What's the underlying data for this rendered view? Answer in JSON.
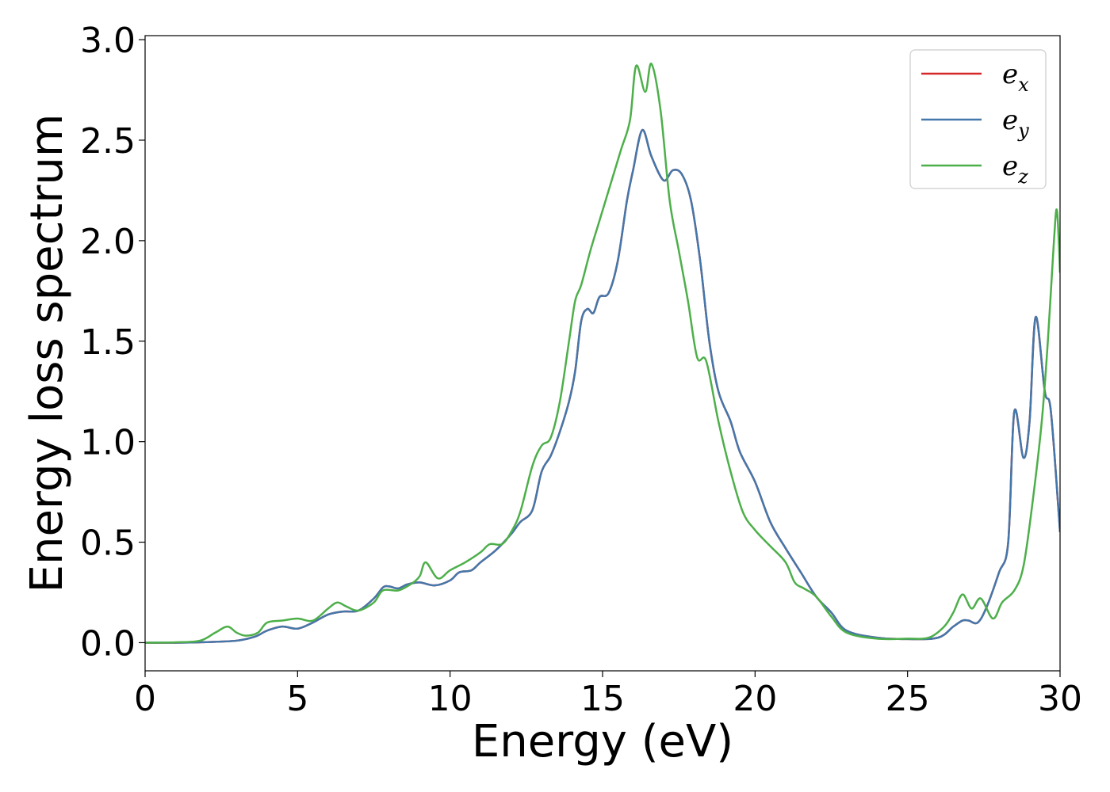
{
  "chart_data": {
    "type": "line",
    "title": "",
    "xlabel": "Energy (eV)",
    "ylabel": "Energy loss spectrum",
    "xlim": [
      0,
      30
    ],
    "ylim": [
      -0.14,
      3.02
    ],
    "xticks": [
      0,
      5,
      10,
      15,
      20,
      25,
      30
    ],
    "yticks": [
      0.0,
      0.5,
      1.0,
      1.5,
      2.0,
      2.5,
      3.0
    ],
    "xtick_labels": [
      "0",
      "5",
      "10",
      "15",
      "20",
      "25",
      "30"
    ],
    "ytick_labels": [
      "0.0",
      "0.5",
      "1.0",
      "1.5",
      "2.0",
      "2.5",
      "3.0"
    ],
    "grid": false,
    "legend_position": "top-right",
    "series": [
      {
        "name": "e",
        "subscript": "x",
        "color": "#d62728",
        "points": [
          [
            0,
            0.0
          ],
          [
            1,
            0.0
          ],
          [
            2,
            0.003
          ],
          [
            3,
            0.01
          ],
          [
            3.6,
            0.03
          ],
          [
            4,
            0.06
          ],
          [
            4.5,
            0.08
          ],
          [
            5,
            0.07
          ],
          [
            5.5,
            0.1
          ],
          [
            6,
            0.14
          ],
          [
            6.5,
            0.155
          ],
          [
            7,
            0.16
          ],
          [
            7.5,
            0.22
          ],
          [
            7.8,
            0.275
          ],
          [
            8,
            0.28
          ],
          [
            8.3,
            0.27
          ],
          [
            8.6,
            0.29
          ],
          [
            9,
            0.3
          ],
          [
            9.5,
            0.285
          ],
          [
            10,
            0.31
          ],
          [
            10.3,
            0.35
          ],
          [
            10.7,
            0.36
          ],
          [
            11,
            0.4
          ],
          [
            11.5,
            0.46
          ],
          [
            12,
            0.54
          ],
          [
            12.3,
            0.6
          ],
          [
            12.7,
            0.66
          ],
          [
            13,
            0.85
          ],
          [
            13.3,
            0.93
          ],
          [
            13.6,
            1.05
          ],
          [
            13.9,
            1.2
          ],
          [
            14.1,
            1.35
          ],
          [
            14.3,
            1.6
          ],
          [
            14.5,
            1.66
          ],
          [
            14.7,
            1.64
          ],
          [
            14.9,
            1.72
          ],
          [
            15.2,
            1.74
          ],
          [
            15.5,
            1.9
          ],
          [
            15.8,
            2.2
          ],
          [
            16,
            2.35
          ],
          [
            16.3,
            2.55
          ],
          [
            16.6,
            2.42
          ],
          [
            17,
            2.3
          ],
          [
            17.3,
            2.35
          ],
          [
            17.6,
            2.33
          ],
          [
            17.9,
            2.2
          ],
          [
            18.2,
            1.9
          ],
          [
            18.5,
            1.5
          ],
          [
            18.8,
            1.25
          ],
          [
            19.2,
            1.1
          ],
          [
            19.5,
            0.95
          ],
          [
            20,
            0.8
          ],
          [
            20.5,
            0.6
          ],
          [
            21,
            0.47
          ],
          [
            21.5,
            0.35
          ],
          [
            22,
            0.23
          ],
          [
            22.5,
            0.15
          ],
          [
            23,
            0.06
          ],
          [
            24,
            0.025
          ],
          [
            25,
            0.018
          ],
          [
            26,
            0.025
          ],
          [
            26.5,
            0.08
          ],
          [
            26.8,
            0.11
          ],
          [
            27,
            0.11
          ],
          [
            27.3,
            0.1
          ],
          [
            27.6,
            0.18
          ],
          [
            28,
            0.35
          ],
          [
            28.3,
            0.5
          ],
          [
            28.5,
            1.15
          ],
          [
            28.8,
            0.92
          ],
          [
            29,
            1.1
          ],
          [
            29.2,
            1.62
          ],
          [
            29.5,
            1.25
          ],
          [
            29.7,
            1.15
          ],
          [
            30,
            0.55
          ]
        ]
      },
      {
        "name": "e",
        "subscript": "y",
        "color": "#4477aa",
        "points": [
          [
            0,
            0.0
          ],
          [
            1,
            0.0
          ],
          [
            2,
            0.003
          ],
          [
            3,
            0.01
          ],
          [
            3.6,
            0.03
          ],
          [
            4,
            0.06
          ],
          [
            4.5,
            0.08
          ],
          [
            5,
            0.07
          ],
          [
            5.5,
            0.1
          ],
          [
            6,
            0.14
          ],
          [
            6.5,
            0.155
          ],
          [
            7,
            0.16
          ],
          [
            7.5,
            0.22
          ],
          [
            7.8,
            0.275
          ],
          [
            8,
            0.28
          ],
          [
            8.3,
            0.27
          ],
          [
            8.6,
            0.29
          ],
          [
            9,
            0.3
          ],
          [
            9.5,
            0.285
          ],
          [
            10,
            0.31
          ],
          [
            10.3,
            0.35
          ],
          [
            10.7,
            0.36
          ],
          [
            11,
            0.4
          ],
          [
            11.5,
            0.46
          ],
          [
            12,
            0.54
          ],
          [
            12.3,
            0.6
          ],
          [
            12.7,
            0.66
          ],
          [
            13,
            0.85
          ],
          [
            13.3,
            0.93
          ],
          [
            13.6,
            1.05
          ],
          [
            13.9,
            1.2
          ],
          [
            14.1,
            1.35
          ],
          [
            14.3,
            1.6
          ],
          [
            14.5,
            1.66
          ],
          [
            14.7,
            1.64
          ],
          [
            14.9,
            1.72
          ],
          [
            15.2,
            1.74
          ],
          [
            15.5,
            1.9
          ],
          [
            15.8,
            2.2
          ],
          [
            16,
            2.35
          ],
          [
            16.3,
            2.55
          ],
          [
            16.6,
            2.42
          ],
          [
            17,
            2.3
          ],
          [
            17.3,
            2.35
          ],
          [
            17.6,
            2.33
          ],
          [
            17.9,
            2.2
          ],
          [
            18.2,
            1.9
          ],
          [
            18.5,
            1.5
          ],
          [
            18.8,
            1.25
          ],
          [
            19.2,
            1.1
          ],
          [
            19.5,
            0.95
          ],
          [
            20,
            0.8
          ],
          [
            20.5,
            0.6
          ],
          [
            21,
            0.47
          ],
          [
            21.5,
            0.35
          ],
          [
            22,
            0.23
          ],
          [
            22.5,
            0.15
          ],
          [
            23,
            0.06
          ],
          [
            24,
            0.025
          ],
          [
            25,
            0.018
          ],
          [
            26,
            0.025
          ],
          [
            26.5,
            0.08
          ],
          [
            26.8,
            0.11
          ],
          [
            27,
            0.11
          ],
          [
            27.3,
            0.1
          ],
          [
            27.6,
            0.18
          ],
          [
            28,
            0.35
          ],
          [
            28.3,
            0.5
          ],
          [
            28.5,
            1.15
          ],
          [
            28.8,
            0.92
          ],
          [
            29,
            1.1
          ],
          [
            29.2,
            1.62
          ],
          [
            29.5,
            1.25
          ],
          [
            29.7,
            1.15
          ],
          [
            30,
            0.55
          ]
        ]
      },
      {
        "name": "e",
        "subscript": "z",
        "color": "#4daf4a",
        "points": [
          [
            0,
            0.0
          ],
          [
            1,
            0.002
          ],
          [
            1.8,
            0.01
          ],
          [
            2.3,
            0.05
          ],
          [
            2.7,
            0.08
          ],
          [
            3,
            0.05
          ],
          [
            3.3,
            0.035
          ],
          [
            3.7,
            0.05
          ],
          [
            4,
            0.1
          ],
          [
            4.5,
            0.11
          ],
          [
            5,
            0.12
          ],
          [
            5.5,
            0.11
          ],
          [
            6,
            0.17
          ],
          [
            6.3,
            0.2
          ],
          [
            6.6,
            0.18
          ],
          [
            7,
            0.16
          ],
          [
            7.5,
            0.2
          ],
          [
            7.8,
            0.26
          ],
          [
            8.3,
            0.26
          ],
          [
            8.7,
            0.29
          ],
          [
            9,
            0.33
          ],
          [
            9.2,
            0.4
          ],
          [
            9.6,
            0.32
          ],
          [
            10,
            0.36
          ],
          [
            10.5,
            0.4
          ],
          [
            11,
            0.45
          ],
          [
            11.3,
            0.49
          ],
          [
            11.7,
            0.49
          ],
          [
            12,
            0.55
          ],
          [
            12.3,
            0.65
          ],
          [
            12.7,
            0.88
          ],
          [
            13,
            0.98
          ],
          [
            13.3,
            1.02
          ],
          [
            13.6,
            1.2
          ],
          [
            13.9,
            1.5
          ],
          [
            14.1,
            1.7
          ],
          [
            14.3,
            1.78
          ],
          [
            14.6,
            1.95
          ],
          [
            14.9,
            2.1
          ],
          [
            15.2,
            2.25
          ],
          [
            15.6,
            2.45
          ],
          [
            15.9,
            2.6
          ],
          [
            16.1,
            2.87
          ],
          [
            16.4,
            2.74
          ],
          [
            16.6,
            2.88
          ],
          [
            16.9,
            2.65
          ],
          [
            17.2,
            2.2
          ],
          [
            17.5,
            1.95
          ],
          [
            17.8,
            1.7
          ],
          [
            18.1,
            1.42
          ],
          [
            18.4,
            1.4
          ],
          [
            18.8,
            1.1
          ],
          [
            19.2,
            0.85
          ],
          [
            19.6,
            0.65
          ],
          [
            20,
            0.56
          ],
          [
            20.5,
            0.48
          ],
          [
            21,
            0.4
          ],
          [
            21.3,
            0.3
          ],
          [
            21.6,
            0.27
          ],
          [
            22,
            0.23
          ],
          [
            22.5,
            0.13
          ],
          [
            23,
            0.05
          ],
          [
            24,
            0.02
          ],
          [
            25,
            0.02
          ],
          [
            25.7,
            0.025
          ],
          [
            26.2,
            0.08
          ],
          [
            26.5,
            0.15
          ],
          [
            26.8,
            0.24
          ],
          [
            27.1,
            0.17
          ],
          [
            27.4,
            0.22
          ],
          [
            27.8,
            0.12
          ],
          [
            28.1,
            0.2
          ],
          [
            28.5,
            0.26
          ],
          [
            28.8,
            0.38
          ],
          [
            29.1,
            0.7
          ],
          [
            29.4,
            1.1
          ],
          [
            29.6,
            1.5
          ],
          [
            29.8,
            2.0
          ],
          [
            29.9,
            2.15
          ],
          [
            30,
            1.84
          ]
        ]
      }
    ]
  }
}
